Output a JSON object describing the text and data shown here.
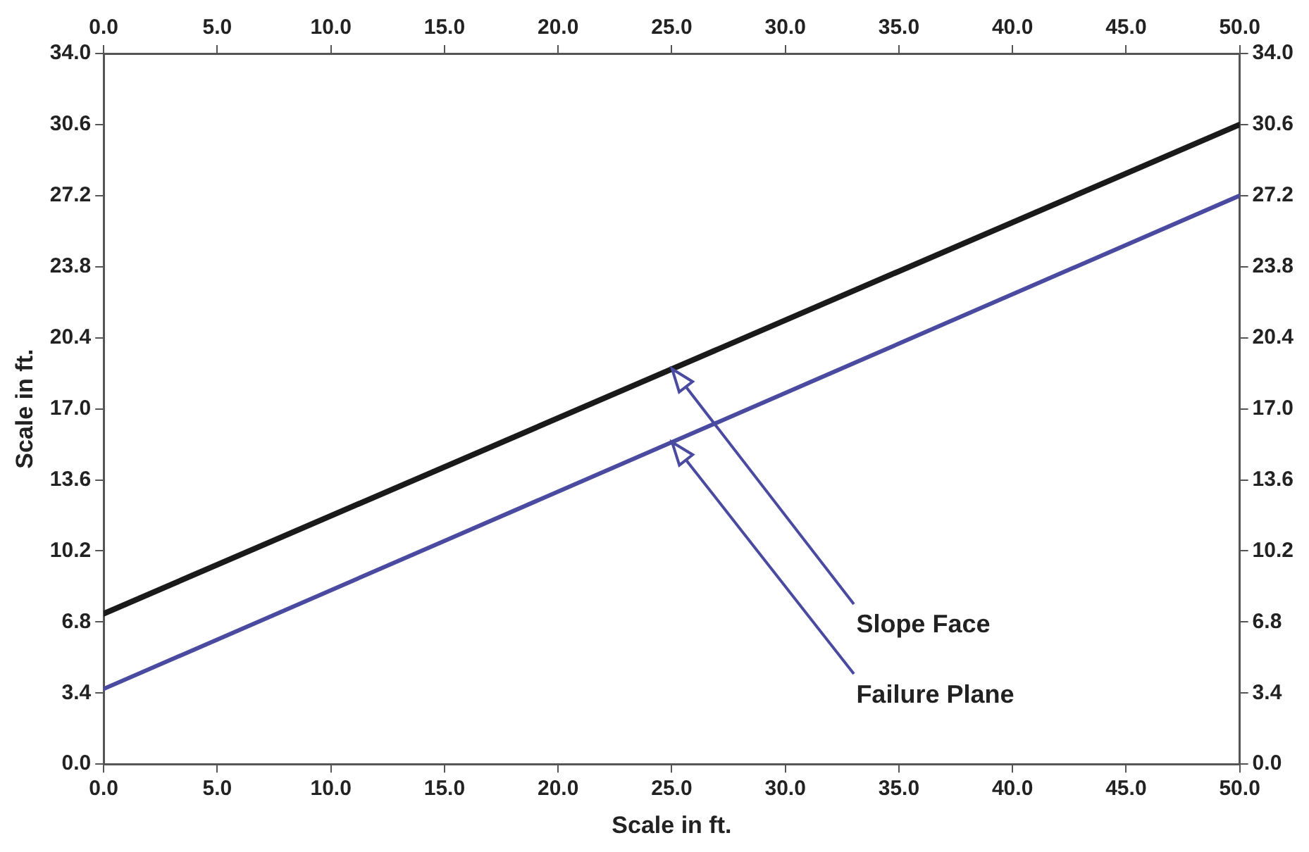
{
  "chart_data": {
    "type": "line",
    "xlabel": "Scale in ft.",
    "ylabel": "Scale in ft.",
    "xlim": [
      0,
      50
    ],
    "xticks": [
      {
        "value": 0,
        "label": "0.0"
      },
      {
        "value": 5,
        "label": "5.0"
      },
      {
        "value": 10,
        "label": "10.0"
      },
      {
        "value": 15,
        "label": "15.0"
      },
      {
        "value": 20,
        "label": "20.0"
      },
      {
        "value": 25,
        "label": "25.0"
      },
      {
        "value": 30,
        "label": "30.0"
      },
      {
        "value": 35,
        "label": "35.0"
      },
      {
        "value": 40,
        "label": "40.0"
      },
      {
        "value": 45,
        "label": "45.0"
      },
      {
        "value": 50,
        "label": "50.0"
      }
    ],
    "x2lim": [
      0,
      50
    ],
    "x2ticks": [
      {
        "value": 0,
        "label": "0.0"
      },
      {
        "value": 5,
        "label": "5.0"
      },
      {
        "value": 10,
        "label": "10.0"
      },
      {
        "value": 15,
        "label": "15.0"
      },
      {
        "value": 20,
        "label": "20.0"
      },
      {
        "value": 25,
        "label": "25.0"
      },
      {
        "value": 30,
        "label": "30.0"
      },
      {
        "value": 35,
        "label": "35.0"
      },
      {
        "value": 40,
        "label": "40.0"
      },
      {
        "value": 45,
        "label": "45.0"
      },
      {
        "value": 50,
        "label": "50.0"
      }
    ],
    "ylim": [
      0,
      34
    ],
    "yticks": [
      {
        "value": 0,
        "label": "0.0"
      },
      3.4,
      6.8,
      10.2,
      {
        "value": 13.6,
        "label": "13.6"
      },
      {
        "value": 17,
        "label": "17.0"
      },
      20.4,
      23.8,
      27.2,
      30.6,
      {
        "value": 34,
        "label": "34.0"
      }
    ],
    "y2lim": [
      0,
      34
    ],
    "y2ticks": [
      {
        "value": 0,
        "label": "0.0"
      },
      3.4,
      6.8,
      10.2,
      {
        "value": 13.6,
        "label": "13.6"
      },
      {
        "value": 17,
        "label": "17.0"
      },
      20.4,
      23.8,
      27.2,
      30.6,
      {
        "value": 34,
        "label": "34.0"
      }
    ],
    "x": [
      0,
      50
    ],
    "series": [
      {
        "color": "#1a1a1a",
        "values": [
          7.2,
          30.6
        ]
      },
      {
        "color": "#4a4aa0",
        "values": [
          3.6,
          27.2
        ]
      }
    ],
    "annotations": [
      "Slope Face",
      "Failure Plane"
    ],
    "grid": false,
    "legend": false,
    "marker": "none",
    "line_style": "solid"
  }
}
